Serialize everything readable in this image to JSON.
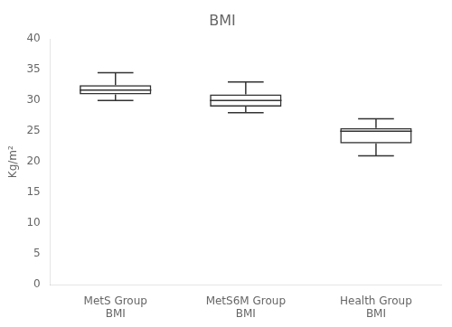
{
  "chart_data": {
    "type": "box",
    "title": "BMI",
    "ylabel": "Kg/m²",
    "categories": [
      "MetS Group\nBMI",
      "MetS6M Group\nBMI",
      "Health Group\nBMI"
    ],
    "whisker_low": [
      30.0,
      28.0,
      21.0
    ],
    "q1": [
      31.0,
      29.0,
      23.0
    ],
    "median": [
      31.7,
      30.0,
      25.0
    ],
    "q3": [
      32.5,
      31.0,
      25.5
    ],
    "whisker_high": [
      34.5,
      33.0,
      27.0
    ],
    "color": "#333333",
    "ylim": [
      0,
      40
    ],
    "yticks": [
      0,
      5,
      10,
      15,
      20,
      25,
      30,
      35,
      40
    ],
    "grid": false
  }
}
